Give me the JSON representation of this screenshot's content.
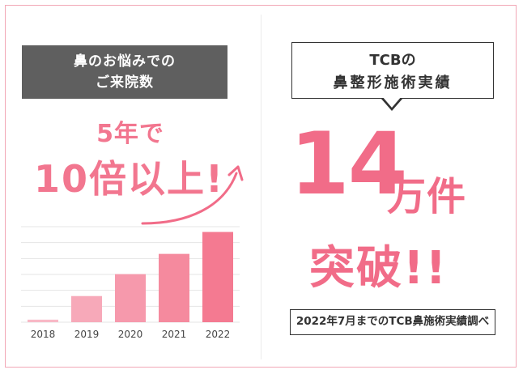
{
  "left_panel": {
    "header_line1": "鼻のお悩みでの",
    "header_line2": "ご来院数",
    "claim_line1": "5年で",
    "claim_line2": "10倍以上!"
  },
  "right_panel": {
    "header_line1": "TCBの",
    "header_line2": "鼻整形施術実績",
    "big_number": "14",
    "big_unit": "万件",
    "breakthrough": "突破!!",
    "note": "2022年7月までのTCB鼻施術実績調べ"
  },
  "colors": {
    "accent": "#f16c88",
    "bar_light": "#f8b8c6",
    "bar_dark": "#f47a91",
    "header_bg": "#5f5f5f",
    "frame": "#f2a7b6"
  },
  "chart_data": {
    "type": "bar",
    "categories": [
      "2018",
      "2019",
      "2020",
      "2021",
      "2022"
    ],
    "values": [
      3,
      31,
      57,
      81,
      107
    ],
    "ylim": [
      0,
      120
    ],
    "title": "",
    "xlabel": "",
    "ylabel": "",
    "grid": true
  }
}
